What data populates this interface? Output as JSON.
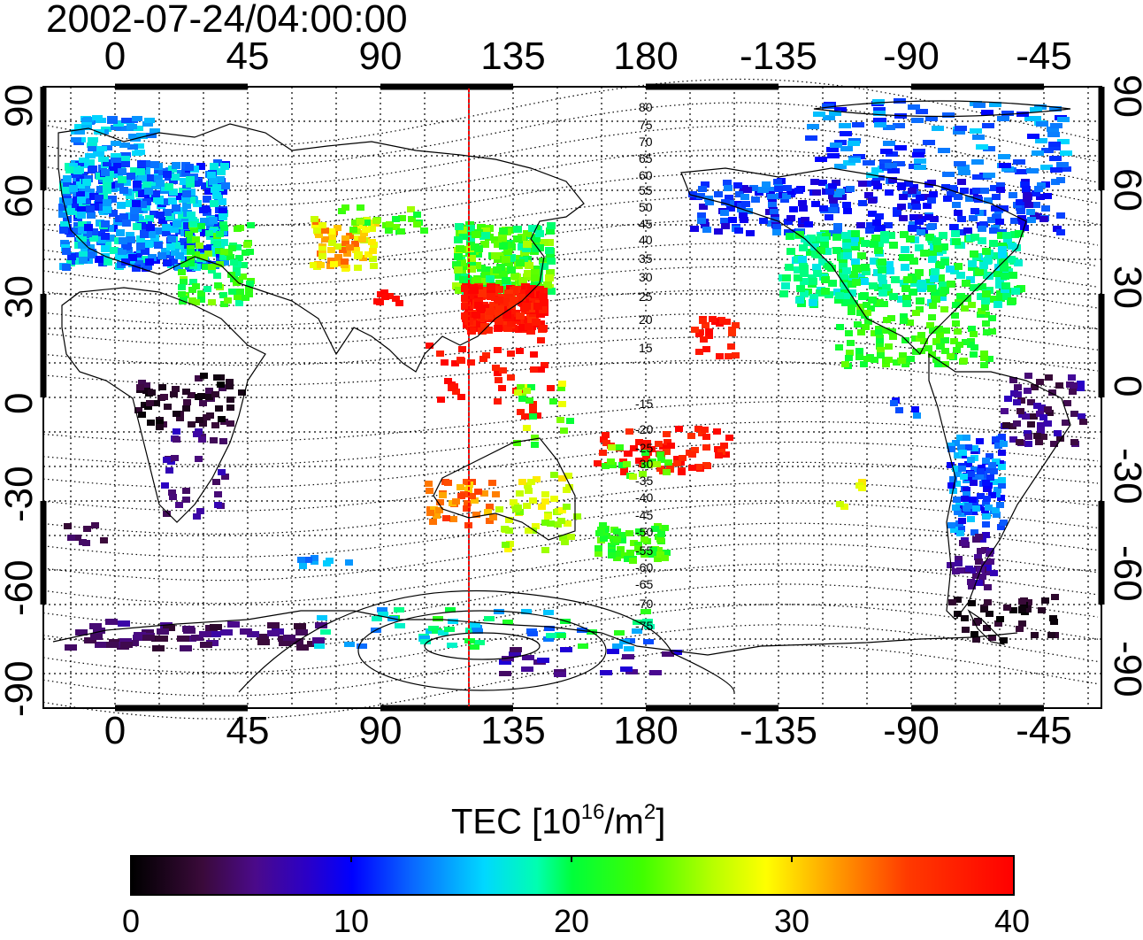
{
  "title": "2002-07-24/04:00:00",
  "map": {
    "lon_ticks_top": [
      "0",
      "45",
      "90",
      "135",
      "180",
      "-135",
      "-90",
      "-45"
    ],
    "lon_ticks_bottom": [
      "0",
      "45",
      "90",
      "135",
      "180",
      "-135",
      "-90",
      "-45"
    ],
    "lat_ticks_left": [
      "90",
      "60",
      "30",
      "0",
      "-30",
      "-60",
      "-90"
    ],
    "lat_ticks_right": [
      "90",
      "60",
      "30",
      "0",
      "-30",
      "-60",
      "-90"
    ],
    "contour_labels": [
      "80",
      "75",
      "70",
      "65",
      "60",
      "55",
      "50",
      "45",
      "40",
      "35",
      "30",
      "25",
      "20",
      "15",
      "-15",
      "-20",
      "-25",
      "-30",
      "-35",
      "-40",
      "-45",
      "-50",
      "-55",
      "-60",
      "-65",
      "-70",
      "-75"
    ],
    "marker_longitude": 120
  },
  "colorbar": {
    "label_main": "TEC  [10",
    "label_sup1": "16",
    "label_mid": "/m",
    "label_sup2": "2",
    "label_end": "]",
    "ticks": [
      "0",
      "10",
      "20",
      "30",
      "40"
    ],
    "range": [
      0,
      40
    ]
  }
}
